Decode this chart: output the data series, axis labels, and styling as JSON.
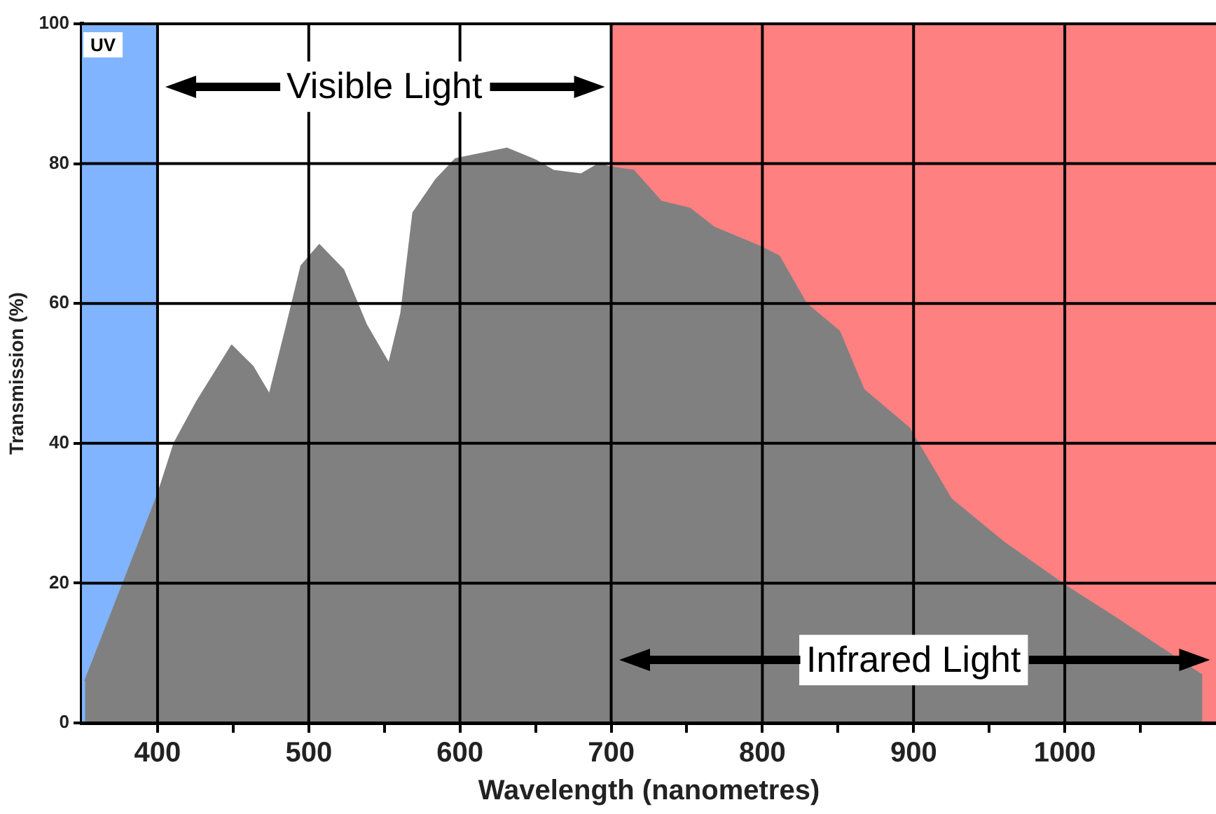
{
  "chart_data": {
    "type": "area",
    "xlabel": "Wavelength (nanometres)",
    "ylabel": "Transmission (%)",
    "x": [
      352,
      400,
      411,
      426,
      449,
      463,
      474,
      485,
      495,
      507,
      523,
      538,
      553,
      561,
      569,
      584,
      597,
      631,
      650,
      662,
      680,
      692,
      700,
      715,
      733,
      752,
      768,
      798,
      811,
      829,
      851,
      867,
      897,
      925,
      960,
      1000,
      1034,
      1091
    ],
    "series": [
      {
        "color": "#808080",
        "values": [
          6,
          32.6,
          40,
          46,
          54,
          51,
          47,
          56.5,
          65.4,
          68.4,
          64.8,
          57,
          51.4,
          58.6,
          73,
          77.7,
          80.7,
          82.2,
          80.5,
          79,
          78.5,
          80,
          79.5,
          79,
          74.6,
          73.6,
          70.9,
          68.2,
          66.8,
          60,
          56,
          47.7,
          42.2,
          32,
          25.8,
          19.7,
          15,
          6.8
        ]
      }
    ],
    "xlim": [
      350,
      1100
    ],
    "ylim": [
      0,
      100
    ],
    "xticks": [
      400,
      {
        "value": 450,
        "label": null
      },
      500,
      {
        "value": 550,
        "label": null
      },
      600,
      {
        "value": 650,
        "label": null
      },
      700,
      {
        "value": 750,
        "label": null
      },
      800,
      {
        "value": 850,
        "label": null
      },
      900,
      {
        "value": 950,
        "label": null
      },
      1000,
      {
        "value": 1050,
        "label": null
      }
    ],
    "yticks": [
      0,
      20,
      40,
      60,
      80,
      100
    ],
    "grid": true,
    "legend": false,
    "annotations": [
      "Visible Light"
    ],
    "bands": [
      {
        "axis": "x",
        "from": 350,
        "to": 400,
        "label": "UV",
        "color": "#80b4ff"
      },
      {
        "axis": "x",
        "from": 700,
        "to": 1100,
        "label": "Infrared Light",
        "color": "#ff8080"
      }
    ]
  }
}
